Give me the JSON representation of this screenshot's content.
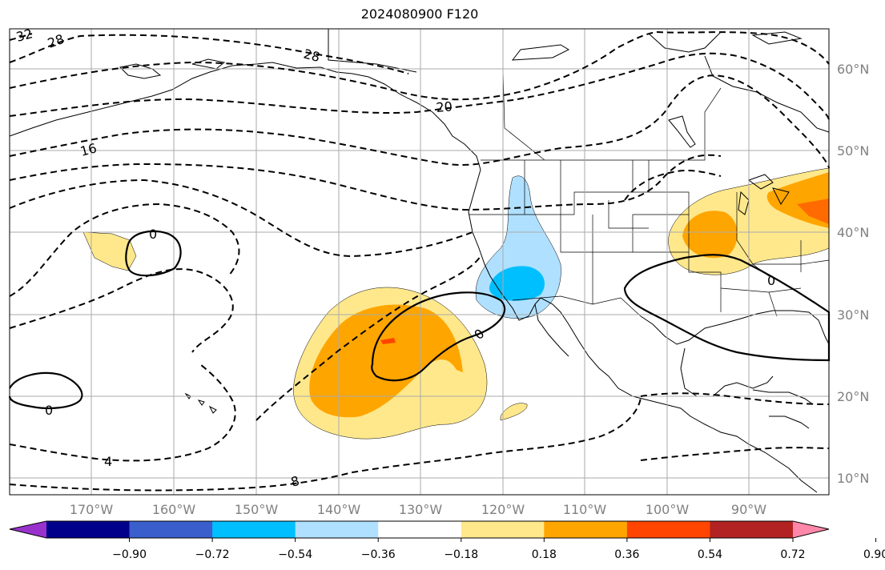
{
  "title": "2024080900 F120",
  "lat_labels": [
    "60°N",
    "50°N",
    "40°N",
    "30°N",
    "20°N",
    "10°N"
  ],
  "lon_labels": [
    "170°W",
    "160°W",
    "150°W",
    "140°W",
    "130°W",
    "120°W",
    "110°W",
    "100°W",
    "90°W"
  ],
  "contour_labels": [
    "32",
    "28",
    "28",
    "20",
    "16",
    "0",
    "0",
    "0",
    "0",
    "4",
    "8"
  ],
  "colorbar": {
    "ticks": [
      "−0.90",
      "−0.72",
      "−0.54",
      "−0.36",
      "−0.18",
      "0.18",
      "0.36",
      "0.54",
      "0.72",
      "0.90"
    ],
    "colors": [
      "#9932cc",
      "#00008b",
      "#3a5fcd",
      "#00bfff",
      "#b0e0ff",
      "#ffffff",
      "#ffe88c",
      "#ffa500",
      "#ff4500",
      "#b22222",
      "#ff88aa"
    ]
  },
  "colors": {
    "positive_light": "#ffe88c",
    "positive_mid": "#ffa500",
    "positive_high": "#ff4500",
    "negative_light": "#b0e0ff",
    "negative_mid": "#00bfff",
    "grid": "#aaaaaa",
    "contour": "#000000"
  }
}
